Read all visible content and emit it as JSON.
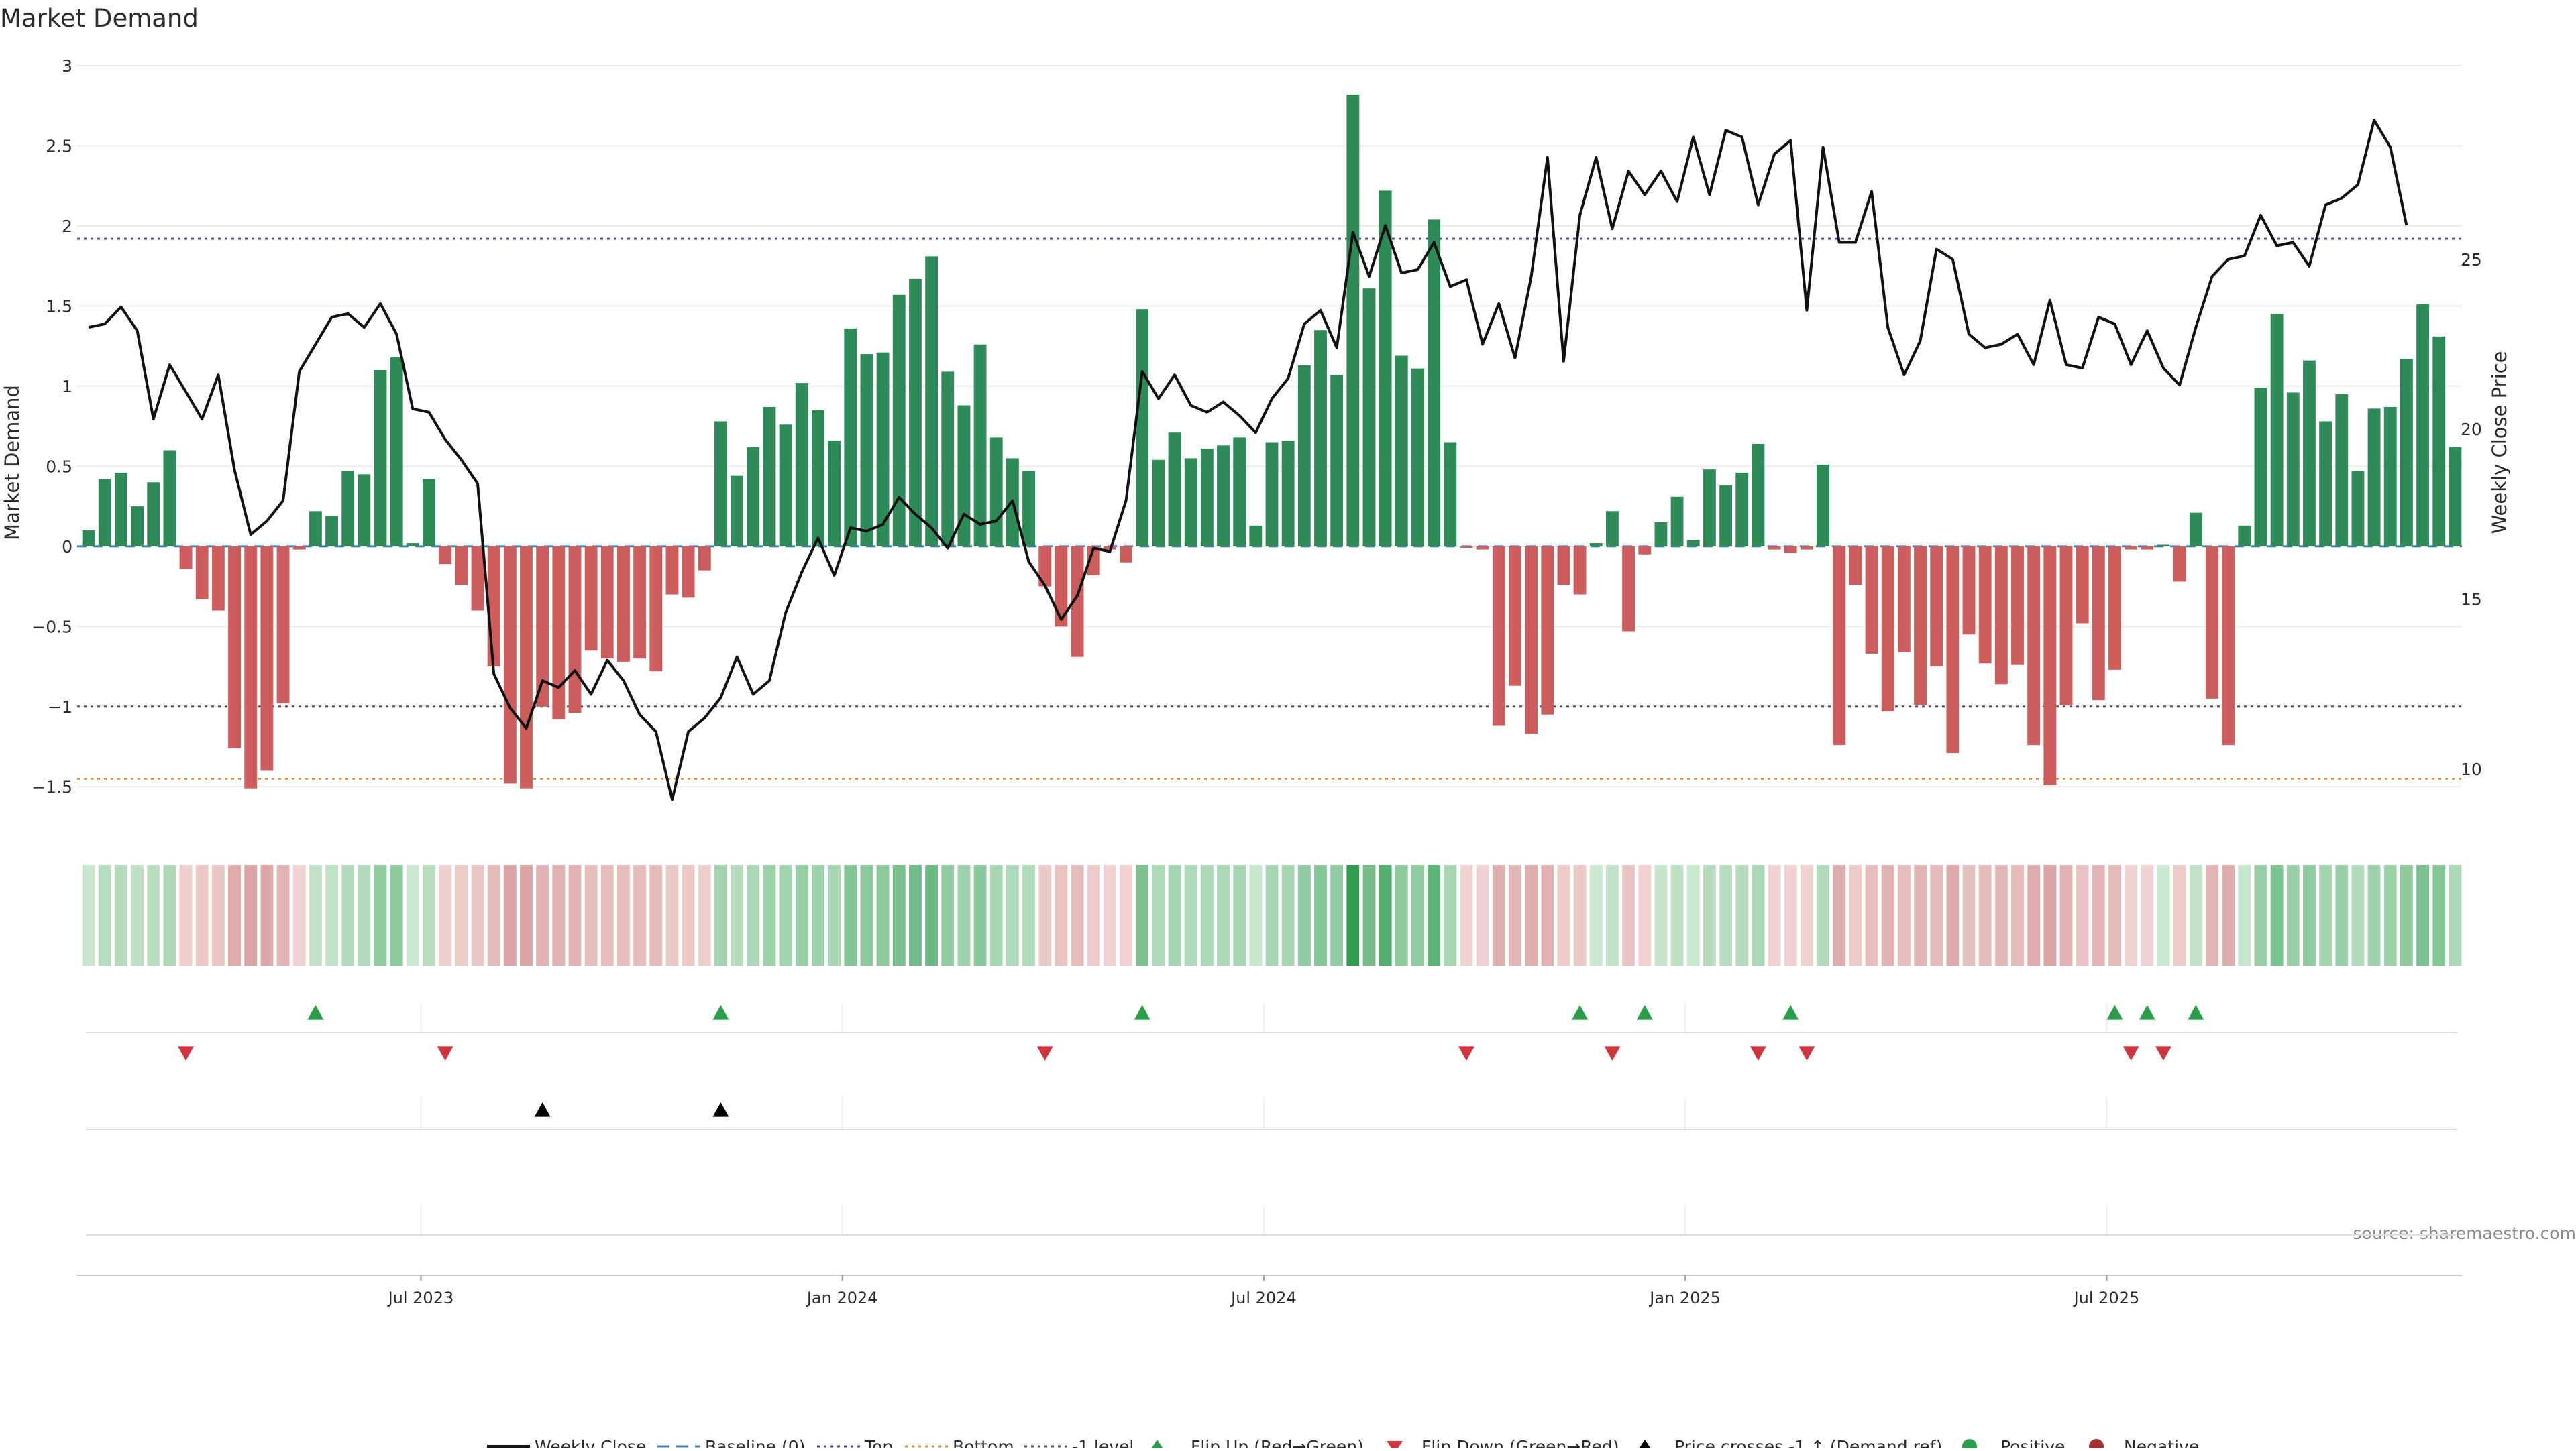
{
  "chart_data": {
    "type": "bar",
    "title": "Market Demand",
    "ylabel": "Market Demand",
    "y2label": "Weekly Close Price",
    "source": "source: sharemaestro.com",
    "ylim": [
      -1.75,
      3.0
    ],
    "y_ticks": [
      "3",
      "2.5",
      "2",
      "1.5",
      "1",
      "0.5",
      "0",
      "−0.5",
      "−1",
      "−1.5"
    ],
    "y_tick_values": [
      3,
      2.5,
      2,
      1.5,
      1,
      0.5,
      0,
      -0.5,
      -1,
      -1.5
    ],
    "y2lim": [
      8.3,
      30.7
    ],
    "y2_ticks": [
      "25",
      "20",
      "15",
      "10"
    ],
    "y2_tick_values": [
      25,
      20,
      15,
      10
    ],
    "x_ticks": [
      "Jul 2023",
      "Jan 2024",
      "Jul 2024",
      "Jan 2025",
      "Jul 2025"
    ],
    "x_tick_weeks": [
      20.5,
      46.5,
      72.5,
      98.5,
      124.5
    ],
    "reference_lines": [
      {
        "name": "Top",
        "value": 1.92,
        "color": "#4a4aa8"
      },
      {
        "name": "Bottom",
        "value": -1.45,
        "color": "#e08a3c"
      },
      {
        "name": "-1 level",
        "value": -1.0,
        "color": "#555566"
      }
    ],
    "colors": {
      "positive": "#2e8b57",
      "negative": "#cd5c5c",
      "price": "#111111",
      "flip_up": "#2a9d4a",
      "flip_down": "#d0343c",
      "cross": "#000000"
    },
    "demand": [
      0.1,
      0.42,
      0.46,
      0.25,
      0.4,
      0.6,
      -0.14,
      -0.33,
      -0.4,
      -1.26,
      -1.51,
      -1.4,
      -0.98,
      -0.02,
      0.22,
      0.19,
      0.47,
      0.45,
      1.1,
      1.18,
      0.02,
      0.42,
      -0.11,
      -0.24,
      -0.4,
      -0.75,
      -1.48,
      -1.51,
      -1.0,
      -1.08,
      -1.04,
      -0.65,
      -0.7,
      -0.72,
      -0.7,
      -0.78,
      -0.3,
      -0.32,
      -0.15,
      0.78,
      0.44,
      0.62,
      0.87,
      0.76,
      1.02,
      0.85,
      0.66,
      1.36,
      1.2,
      1.21,
      1.57,
      1.67,
      1.81,
      1.09,
      0.88,
      1.26,
      0.68,
      0.55,
      0.47,
      -0.25,
      -0.5,
      -0.69,
      -0.18,
      -0.02,
      -0.1,
      1.48,
      0.54,
      0.71,
      0.55,
      0.61,
      0.63,
      0.68,
      0.13,
      0.65,
      0.66,
      1.13,
      1.35,
      1.07,
      2.82,
      1.61,
      2.22,
      1.19,
      1.11,
      2.04,
      0.65,
      -0.01,
      -0.02,
      -1.12,
      -0.87,
      -1.17,
      -1.05,
      -0.24,
      -0.3,
      0.02,
      0.22,
      -0.53,
      -0.05,
      0.15,
      0.31,
      0.04,
      0.48,
      0.38,
      0.46,
      0.64,
      -0.02,
      -0.04,
      -0.02,
      0.51,
      -1.24,
      -0.24,
      -0.67,
      -1.03,
      -0.66,
      -0.99,
      -0.75,
      -1.29,
      -0.55,
      -0.73,
      -0.86,
      -0.74,
      -1.24,
      -1.49,
      -0.99,
      -0.48,
      -0.96,
      -0.77,
      -0.02,
      -0.02,
      0.01,
      -0.22,
      0.21,
      -0.95,
      -1.24,
      0.13,
      0.99,
      1.45,
      0.96,
      1.16,
      0.78,
      0.95,
      0.47,
      0.86,
      0.87,
      1.17,
      1.51,
      1.31,
      0.62
    ],
    "price": [
      23.0,
      23.1,
      23.6,
      22.9,
      20.3,
      21.9,
      21.1,
      20.3,
      21.6,
      18.8,
      16.9,
      17.3,
      17.9,
      21.7,
      22.5,
      23.3,
      23.4,
      23.0,
      23.7,
      22.8,
      20.6,
      20.5,
      19.7,
      19.1,
      18.4,
      12.8,
      11.8,
      11.2,
      12.6,
      12.4,
      12.9,
      12.2,
      13.2,
      12.6,
      11.6,
      11.1,
      9.1,
      11.1,
      11.5,
      12.1,
      13.3,
      12.2,
      12.6,
      14.6,
      15.8,
      16.8,
      15.7,
      17.1,
      17.0,
      17.2,
      18.0,
      17.5,
      17.1,
      16.5,
      17.5,
      17.2,
      17.3,
      17.9,
      16.1,
      15.4,
      14.4,
      15.1,
      16.5,
      16.4,
      17.9,
      21.7,
      20.9,
      21.6,
      20.7,
      20.5,
      20.8,
      20.4,
      19.9,
      20.9,
      21.5,
      23.1,
      23.5,
      22.4,
      25.8,
      24.5,
      26.0,
      24.6,
      24.7,
      25.5,
      24.2,
      24.4,
      22.5,
      23.7,
      22.1,
      24.5,
      28.0,
      22.0,
      26.3,
      28.0,
      25.9,
      27.6,
      26.9,
      27.6,
      26.7,
      28.6,
      26.9,
      28.8,
      28.6,
      26.6,
      28.1,
      28.5,
      23.5,
      28.3,
      25.5,
      25.5,
      27.0,
      23.0,
      21.6,
      22.6,
      25.3,
      25.0,
      22.8,
      22.4,
      22.5,
      22.8,
      21.9,
      23.8,
      21.9,
      21.8,
      23.3,
      23.1,
      21.9,
      22.9,
      21.8,
      21.3,
      23.0,
      24.5,
      25.0,
      25.1,
      26.3,
      25.4,
      25.5,
      24.8,
      26.6,
      26.8,
      27.2,
      29.1,
      28.3,
      26.0
    ],
    "flip_up_weeks": [
      14,
      39,
      65,
      92,
      96,
      105,
      125,
      127,
      130
    ],
    "flip_down_weeks": [
      6,
      22,
      59,
      85,
      94,
      103,
      106,
      126,
      128
    ],
    "price_cross_weeks": [
      28,
      39
    ]
  },
  "legend": {
    "weekly_close": "Weekly Close",
    "baseline": "Baseline (0)",
    "top": "Top",
    "bottom": "Bottom",
    "minus1": "-1 level",
    "flip_up": "Flip Up (Red→Green)",
    "flip_down": "Flip Down (Green→Red)",
    "cross": "Price crosses -1 ↑ (Demand ref)",
    "positive": "Positive",
    "negative": "Negative"
  }
}
